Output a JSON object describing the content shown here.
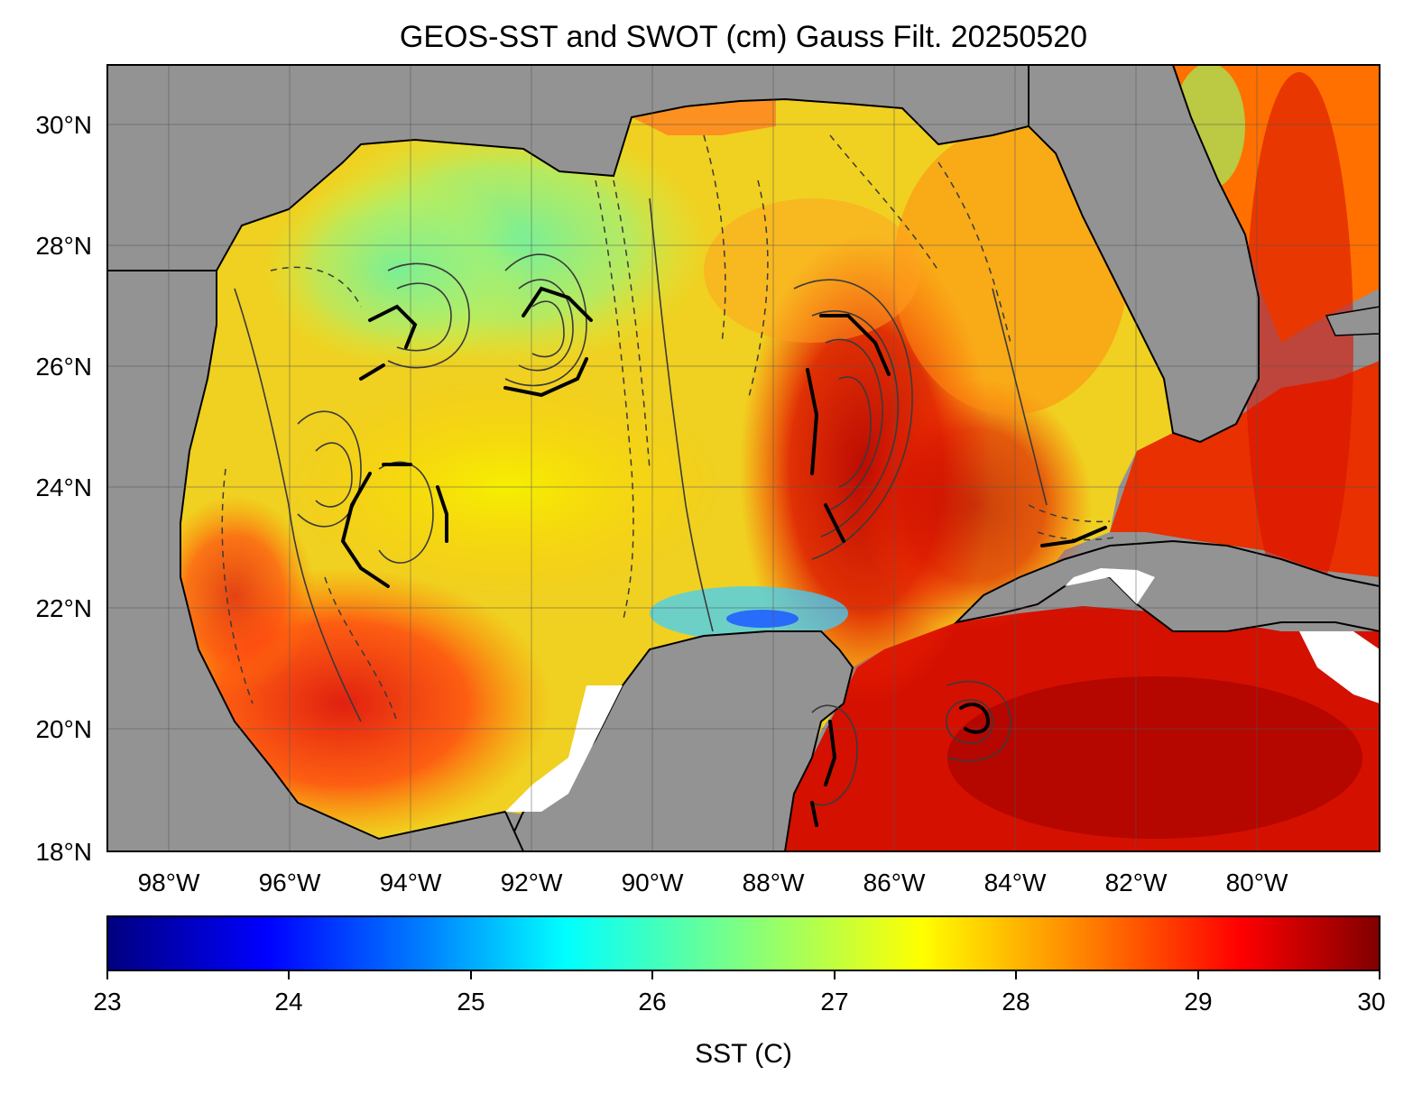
{
  "title": "GEOS-SST  and SWOT (cm) Gauss Filt. 20250520",
  "map": {
    "lat_ticks": [
      "30°N",
      "28°N",
      "26°N",
      "24°N",
      "22°N",
      "20°N",
      "18°N"
    ],
    "lon_ticks": [
      "98°W",
      "96°W",
      "94°W",
      "92°W",
      "90°W",
      "88°W",
      "86°W",
      "84°W",
      "82°W",
      "80°W"
    ],
    "land_color": "#939393",
    "no_data_color": "#ffffff",
    "contour_color": "#3a3a3a",
    "gridlines": true
  },
  "colorbar": {
    "label": "SST (C)",
    "ticks": [
      "23",
      "24",
      "25",
      "26",
      "27",
      "28",
      "29",
      "30"
    ],
    "min": 23,
    "max": 30,
    "colormap": "jet",
    "stops": [
      "#00007f",
      "#0000ff",
      "#007fff",
      "#00ffff",
      "#7fff7f",
      "#ffff00",
      "#ff7f00",
      "#ff0000",
      "#7f0000"
    ]
  }
}
